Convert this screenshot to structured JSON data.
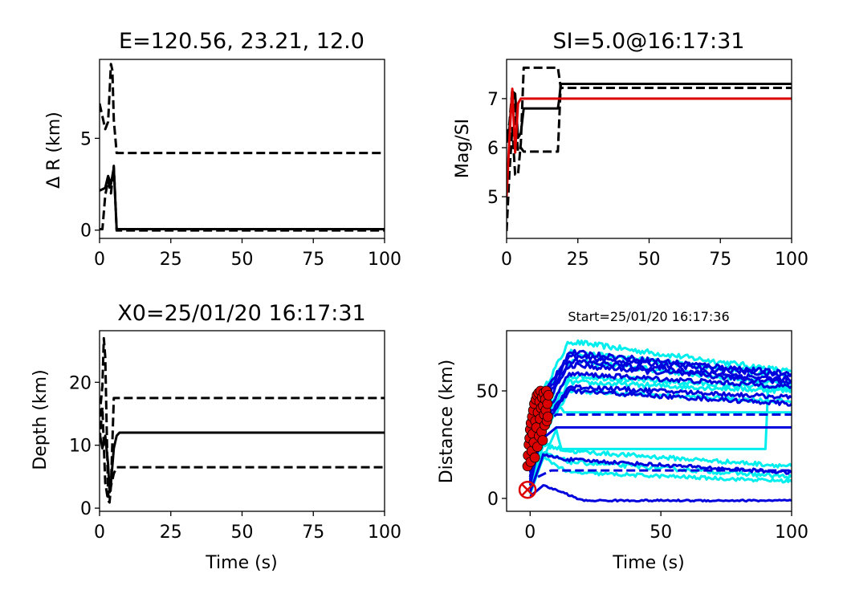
{
  "figure": {
    "background": "#ffffff"
  },
  "chart_data": [
    {
      "id": "p1",
      "type": "line",
      "title": "E=120.56, 23.21, 12.0",
      "xlabel": "",
      "ylabel": "Δ R (km)",
      "xlim": [
        0,
        100
      ],
      "ylim": [
        -0.45,
        9.3
      ],
      "xticks": [
        0,
        25,
        50,
        75,
        100
      ],
      "yticks": [
        0,
        5
      ],
      "series": [
        {
          "color": "#000000",
          "dash": false,
          "x": [
            0,
            2,
            3,
            4,
            5,
            6,
            100
          ],
          "y": [
            2.15,
            2.3,
            2.95,
            2.5,
            3.4,
            0.05,
            0.05
          ]
        },
        {
          "color": "#000000",
          "dash": true,
          "x": [
            0,
            2,
            3,
            4,
            4.5,
            5,
            6,
            100
          ],
          "y": [
            6.9,
            5.5,
            5.9,
            9.05,
            8.7,
            6.0,
            4.2,
            4.2
          ]
        },
        {
          "color": "#000000",
          "dash": true,
          "x": [
            0,
            1,
            2,
            3,
            4,
            5,
            6,
            100
          ],
          "y": [
            0.05,
            0.05,
            1.9,
            2.7,
            2.0,
            3.5,
            -0.02,
            -0.02
          ]
        }
      ]
    },
    {
      "id": "p2",
      "type": "line",
      "title": "SI=5.0@16:17:31",
      "xlabel": "",
      "ylabel": "Mag/SI",
      "xlim": [
        0,
        100
      ],
      "ylim": [
        4.15,
        7.8
      ],
      "xticks": [
        0,
        25,
        50,
        75,
        100
      ],
      "yticks": [
        5,
        6,
        7
      ],
      "series": [
        {
          "color": "#000000",
          "dash": false,
          "x": [
            0,
            1,
            2,
            3,
            4,
            5,
            6,
            18,
            18.5,
            19,
            100
          ],
          "y": [
            6.1,
            6.4,
            7.15,
            7.1,
            6.2,
            6.3,
            6.8,
            6.8,
            7.0,
            7.3,
            7.3
          ]
        },
        {
          "color": "#000000",
          "dash": true,
          "x": [
            0,
            1,
            2,
            3,
            4,
            5,
            6,
            18,
            19,
            100
          ],
          "y": [
            4.3,
            5.5,
            6.4,
            5.45,
            5.45,
            6.1,
            7.63,
            7.63,
            7.22,
            7.22
          ]
        },
        {
          "color": "#000000",
          "dash": true,
          "x": [
            0,
            1,
            2,
            3,
            4,
            5,
            6,
            18,
            19,
            100
          ],
          "y": [
            6.2,
            6.5,
            7.2,
            6.7,
            5.92,
            6.0,
            5.92,
            5.92,
            7.3,
            7.3
          ]
        },
        {
          "color": "#dd0000",
          "dash": false,
          "x": [
            0,
            1,
            2,
            3,
            4,
            5,
            100
          ],
          "y": [
            5.0,
            6.2,
            7.2,
            5.9,
            6.9,
            7.0,
            7.0
          ]
        }
      ]
    },
    {
      "id": "p3",
      "type": "line",
      "title": "X0=25/01/20 16:17:31",
      "xlabel": "Time (s)",
      "ylabel": "Depth (km)",
      "xlim": [
        0,
        100
      ],
      "ylim": [
        -0.5,
        28.2
      ],
      "xticks": [
        0,
        25,
        50,
        75,
        100
      ],
      "yticks": [
        0,
        10,
        20
      ],
      "series": [
        {
          "color": "#000000",
          "dash": false,
          "x": [
            0,
            1,
            2,
            3,
            3.5,
            4,
            5,
            6,
            7,
            8,
            100
          ],
          "y": [
            12.0,
            9.5,
            11.5,
            7.0,
            2.5,
            4.0,
            9.5,
            11.5,
            12.0,
            12.0,
            12.0
          ]
        },
        {
          "color": "#000000",
          "dash": true,
          "x": [
            0,
            1,
            1.5,
            2,
            3,
            4,
            5,
            6,
            100
          ],
          "y": [
            14.5,
            19.5,
            27.0,
            24.0,
            1.8,
            3.5,
            17.5,
            17.5,
            17.5
          ]
        },
        {
          "color": "#000000",
          "dash": true,
          "x": [
            0,
            1,
            2,
            3,
            3.5,
            4,
            5,
            6,
            100
          ],
          "y": [
            10.5,
            16.0,
            4.0,
            1.2,
            0.9,
            3.5,
            5.5,
            6.5,
            6.5
          ]
        }
      ]
    },
    {
      "id": "p4",
      "type": "line",
      "title": "Start=25/01/20 16:17:36",
      "xlabel": "Time (s)",
      "ylabel": "Distance (km)",
      "xlim": [
        -9,
        100
      ],
      "ylim": [
        -6,
        78
      ],
      "xticks": [
        0,
        50,
        100
      ],
      "yticks": [
        0,
        50
      ],
      "colors": {
        "primary": "#0000dd",
        "secondary": "#00eeee",
        "marker": "#dd0000"
      },
      "series": [
        {
          "color": "#00eeee",
          "dash": false,
          "noise": 1.3,
          "x": [
            0,
            5,
            15,
            100
          ],
          "y": [
            10,
            50,
            73,
            59
          ]
        },
        {
          "color": "#00eeee",
          "dash": false,
          "noise": 1.3,
          "x": [
            0,
            5,
            15,
            100
          ],
          "y": [
            12,
            46,
            68,
            57
          ]
        },
        {
          "color": "#00eeee",
          "dash": false,
          "noise": 1.3,
          "x": [
            0,
            5,
            15,
            100
          ],
          "y": [
            8,
            40,
            64,
            53
          ]
        },
        {
          "color": "#00eeee",
          "dash": false,
          "noise": 1.2,
          "x": [
            0,
            5,
            15,
            100
          ],
          "y": [
            10,
            38,
            57,
            51
          ]
        },
        {
          "color": "#00eeee",
          "dash": false,
          "noise": 1.2,
          "x": [
            0,
            5,
            15,
            100
          ],
          "y": [
            8,
            36,
            54,
            50
          ]
        },
        {
          "color": "#00eeee",
          "dash": false,
          "noise": 1.0,
          "x": [
            0,
            5,
            15,
            100
          ],
          "y": [
            6,
            30,
            50,
            45
          ]
        },
        {
          "color": "#00eeee",
          "dash": false,
          "noise": 0.0,
          "x": [
            0,
            10,
            11,
            12,
            90,
            91,
            92,
            100
          ],
          "y": [
            5,
            32,
            27,
            23,
            23,
            52,
            52,
            52
          ]
        },
        {
          "color": "#00eeee",
          "dash": false,
          "noise": 0.0,
          "x": [
            10,
            12,
            13,
            100
          ],
          "y": [
            42,
            42,
            40,
            40
          ]
        },
        {
          "color": "#00eeee",
          "dash": false,
          "noise": 1.0,
          "x": [
            0,
            5,
            15,
            100
          ],
          "y": [
            3,
            25,
            22,
            15
          ]
        },
        {
          "color": "#00eeee",
          "dash": false,
          "noise": 1.0,
          "x": [
            0,
            5,
            15,
            100
          ],
          "y": [
            3,
            21,
            17,
            10
          ]
        },
        {
          "color": "#00eeee",
          "dash": false,
          "noise": 0.8,
          "x": [
            0,
            5,
            15,
            100
          ],
          "y": [
            2,
            19,
            12,
            8
          ]
        },
        {
          "color": "#0000dd",
          "dash": false,
          "noise": 1.2,
          "x": [
            0,
            5,
            15,
            100
          ],
          "y": [
            12,
            48,
            68,
            58
          ]
        },
        {
          "color": "#0000dd",
          "dash": false,
          "noise": 1.2,
          "x": [
            0,
            5,
            15,
            100
          ],
          "y": [
            10,
            46,
            66,
            57
          ]
        },
        {
          "color": "#0000dd",
          "dash": false,
          "noise": 1.2,
          "x": [
            0,
            5,
            15,
            100
          ],
          "y": [
            10,
            44,
            64,
            55
          ]
        },
        {
          "color": "#0000dd",
          "dash": false,
          "noise": 1.2,
          "x": [
            0,
            5,
            15,
            100
          ],
          "y": [
            9,
            42,
            62,
            54
          ]
        },
        {
          "color": "#0000dd",
          "dash": false,
          "noise": 1.1,
          "x": [
            0,
            5,
            15,
            100
          ],
          "y": [
            8,
            38,
            58,
            52
          ]
        },
        {
          "color": "#0000dd",
          "dash": false,
          "noise": 1.0,
          "x": [
            0,
            5,
            15,
            100
          ],
          "y": [
            7,
            35,
            52,
            47
          ]
        },
        {
          "color": "#0000dd",
          "dash": false,
          "noise": 1.0,
          "x": [
            0,
            5,
            15,
            100
          ],
          "y": [
            6,
            33,
            50,
            44
          ]
        },
        {
          "color": "#0000dd",
          "dash": true,
          "noise": 0.0,
          "x": [
            2,
            10,
            12,
            100
          ],
          "y": [
            30,
            39,
            39,
            39
          ]
        },
        {
          "color": "#0000dd",
          "dash": false,
          "noise": 0.0,
          "x": [
            2,
            10,
            12,
            100
          ],
          "y": [
            25,
            33,
            33,
            33
          ]
        },
        {
          "color": "#0000dd",
          "dash": false,
          "noise": 0.8,
          "x": [
            0,
            5,
            15,
            100
          ],
          "y": [
            3,
            20,
            18,
            12
          ]
        },
        {
          "color": "#0000dd",
          "dash": true,
          "noise": 0.0,
          "x": [
            3,
            8,
            10,
            100
          ],
          "y": [
            10,
            13,
            13,
            13
          ]
        },
        {
          "color": "#0000dd",
          "dash": false,
          "noise": 0.4,
          "x": [
            0,
            5,
            12,
            20,
            100
          ],
          "y": [
            1,
            6,
            3,
            -1,
            -1
          ]
        }
      ],
      "markers": {
        "start_symbol": {
          "x": -1,
          "y": 4,
          "symbol": "circle-x",
          "color": "#dd0000"
        },
        "picks": [
          [
            -1,
            15
          ],
          [
            -0.8,
            20
          ],
          [
            -0.5,
            25
          ],
          [
            -0.2,
            28
          ],
          [
            0,
            32
          ],
          [
            0.2,
            17
          ],
          [
            0.3,
            35
          ],
          [
            0.6,
            22
          ],
          [
            0.8,
            38
          ],
          [
            1,
            30
          ],
          [
            1.2,
            41
          ],
          [
            1.4,
            26
          ],
          [
            1.6,
            44
          ],
          [
            1.8,
            19
          ],
          [
            2,
            36
          ],
          [
            2.2,
            46
          ],
          [
            2.4,
            33
          ],
          [
            2.6,
            48
          ],
          [
            2.8,
            24
          ],
          [
            3,
            40
          ],
          [
            3.2,
            49
          ],
          [
            3.4,
            29
          ],
          [
            3.6,
            45
          ],
          [
            3.8,
            37
          ],
          [
            4,
            50
          ],
          [
            4.2,
            42
          ],
          [
            4.4,
            31
          ],
          [
            4.6,
            47
          ],
          [
            4.8,
            27
          ],
          [
            5,
            43
          ],
          [
            5.2,
            49
          ],
          [
            5.4,
            39
          ],
          [
            5.6,
            34
          ],
          [
            5.8,
            46
          ],
          [
            6,
            41
          ],
          [
            6.2,
            50
          ],
          [
            6.4,
            36
          ],
          [
            6.6,
            44
          ],
          [
            6.8,
            38
          ],
          [
            7,
            48
          ]
        ]
      }
    }
  ]
}
